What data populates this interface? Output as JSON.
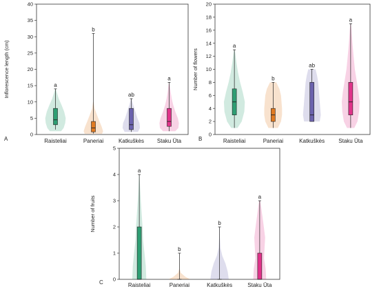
{
  "chart_data": [
    {
      "panel": "A",
      "type": "violin",
      "ylabel": "Inflorescence length (cm)",
      "ylim": [
        0,
        40
      ],
      "yticks": [
        0,
        5,
        10,
        15,
        20,
        25,
        30,
        35,
        40
      ],
      "categories": [
        "Raisteliai",
        "Paneriai",
        "Katkuškės",
        "Staku Ūta"
      ],
      "colors": [
        "#2e9e73",
        "#e07a22",
        "#6b62ad",
        "#e0338a"
      ],
      "groups": [
        {
          "letter": "a",
          "min": 1.5,
          "q1": 3,
          "median": 4.5,
          "q3": 8,
          "max": 14,
          "density": [
            [
              1,
              0.55
            ],
            [
              2,
              0.8
            ],
            [
              3.5,
              0.95
            ],
            [
              5,
              1.0
            ],
            [
              7,
              0.85
            ],
            [
              9,
              0.6
            ],
            [
              11,
              0.32
            ],
            [
              13,
              0.12
            ],
            [
              14,
              0.03
            ]
          ]
        },
        {
          "letter": "b",
          "min": 0.3,
          "q1": 0.8,
          "median": 2,
          "q3": 4,
          "max": 31,
          "density": [
            [
              0.2,
              0.85
            ],
            [
              1,
              0.95
            ],
            [
              2.5,
              0.8
            ],
            [
              4,
              0.6
            ],
            [
              6,
              0.35
            ],
            [
              8,
              0.12
            ],
            [
              10,
              0.03
            ]
          ]
        },
        {
          "letter": "ab",
          "min": 0.8,
          "q1": 1.5,
          "median": 3,
          "q3": 8,
          "max": 11,
          "density": [
            [
              0.8,
              0.65
            ],
            [
              2,
              0.85
            ],
            [
              3.5,
              0.8
            ],
            [
              5,
              0.6
            ],
            [
              7,
              0.4
            ],
            [
              9,
              0.2
            ],
            [
              11,
              0.03
            ]
          ]
        },
        {
          "letter": "a",
          "min": 1,
          "q1": 2.5,
          "median": 4,
          "q3": 8,
          "max": 16,
          "density": [
            [
              1,
              0.6
            ],
            [
              2,
              0.9
            ],
            [
              3.5,
              0.95
            ],
            [
              5,
              0.85
            ],
            [
              7,
              0.6
            ],
            [
              9,
              0.4
            ],
            [
              11,
              0.25
            ],
            [
              13,
              0.15
            ],
            [
              15,
              0.07
            ],
            [
              16,
              0.02
            ]
          ]
        }
      ]
    },
    {
      "panel": "B",
      "type": "violin",
      "ylabel": "Number of flowers",
      "ylim": [
        0,
        20
      ],
      "yticks": [
        0,
        2,
        4,
        6,
        8,
        10,
        12,
        14,
        16,
        18,
        20
      ],
      "categories": [
        "Raisteliai",
        "Paneriai",
        "Katkuškės",
        "Staku Ūta"
      ],
      "colors": [
        "#2e9e73",
        "#e07a22",
        "#6b62ad",
        "#e0338a"
      ],
      "groups": [
        {
          "letter": "a",
          "min": 1,
          "q1": 3,
          "median": 5,
          "q3": 7,
          "max": 13,
          "density": [
            [
              1,
              0.3
            ],
            [
              2,
              0.7
            ],
            [
              3.5,
              0.95
            ],
            [
              5,
              1.0
            ],
            [
              6.5,
              0.8
            ],
            [
              8,
              0.55
            ],
            [
              9.5,
              0.35
            ],
            [
              11,
              0.2
            ],
            [
              12.5,
              0.08
            ],
            [
              13,
              0.02
            ]
          ]
        },
        {
          "letter": "b",
          "min": 1,
          "q1": 2,
          "median": 3,
          "q3": 4,
          "max": 8,
          "density": [
            [
              1,
              0.45
            ],
            [
              2,
              0.75
            ],
            [
              3,
              0.85
            ],
            [
              4,
              0.85
            ],
            [
              5,
              0.8
            ],
            [
              6,
              0.75
            ],
            [
              7,
              0.6
            ],
            [
              8,
              0.3
            ]
          ]
        },
        {
          "letter": "ab",
          "min": 2,
          "q1": 2,
          "median": 3,
          "q3": 8,
          "max": 10,
          "density": [
            [
              2,
              0.75
            ],
            [
              3,
              0.85
            ],
            [
              4,
              0.8
            ],
            [
              5,
              0.75
            ],
            [
              6,
              0.7
            ],
            [
              7,
              0.65
            ],
            [
              8,
              0.6
            ],
            [
              9,
              0.5
            ],
            [
              10,
              0.35
            ]
          ]
        },
        {
          "letter": "a",
          "min": 1,
          "q1": 3,
          "median": 5,
          "q3": 8,
          "max": 17,
          "density": [
            [
              1,
              0.35
            ],
            [
              2,
              0.65
            ],
            [
              3.5,
              0.8
            ],
            [
              5,
              0.85
            ],
            [
              6.5,
              0.75
            ],
            [
              8,
              0.6
            ],
            [
              10,
              0.4
            ],
            [
              12,
              0.28
            ],
            [
              14,
              0.17
            ],
            [
              16,
              0.08
            ],
            [
              17,
              0.03
            ]
          ]
        }
      ]
    },
    {
      "panel": "C",
      "type": "violin",
      "ylabel": "Number of fruits",
      "ylim": [
        0,
        5
      ],
      "yticks": [
        0,
        1,
        2,
        3,
        4,
        5
      ],
      "categories": [
        "Raisteliai",
        "Paneriai",
        "Katkuškės",
        "Staku Ūta"
      ],
      "colors": [
        "#2e9e73",
        "#e07a22",
        "#6b62ad",
        "#e0338a"
      ],
      "groups": [
        {
          "letter": "a",
          "min": 0,
          "q1": 0,
          "median": 0,
          "q3": 2,
          "max": 4,
          "density": [
            [
              0,
              0.65
            ],
            [
              0.5,
              0.6
            ],
            [
              1,
              0.48
            ],
            [
              1.5,
              0.35
            ],
            [
              2,
              0.3
            ],
            [
              2.5,
              0.22
            ],
            [
              3,
              0.14
            ],
            [
              3.5,
              0.07
            ],
            [
              4,
              0.02
            ]
          ]
        },
        {
          "letter": "b",
          "min": 0,
          "q1": 0,
          "median": 0,
          "q3": 0,
          "max": 1,
          "density": [
            [
              0,
              1.0
            ],
            [
              0.1,
              0.55
            ],
            [
              0.25,
              0.12
            ],
            [
              0.4,
              0.02
            ],
            [
              1,
              0.0
            ]
          ]
        },
        {
          "letter": "b",
          "min": 0,
          "q1": 0,
          "median": 0,
          "q3": 0,
          "max": 2,
          "density": [
            [
              0,
              0.85
            ],
            [
              0.3,
              0.75
            ],
            [
              0.6,
              0.55
            ],
            [
              0.9,
              0.25
            ],
            [
              1.2,
              0.08
            ],
            [
              1.6,
              0.03
            ],
            [
              2,
              0.01
            ]
          ]
        },
        {
          "letter": "a",
          "min": 0,
          "q1": 0,
          "median": 0,
          "q3": 1,
          "max": 3,
          "density": [
            [
              0,
              0.6
            ],
            [
              0.4,
              0.55
            ],
            [
              0.8,
              0.4
            ],
            [
              1.2,
              0.45
            ],
            [
              1.6,
              0.5
            ],
            [
              2,
              0.38
            ],
            [
              2.4,
              0.25
            ],
            [
              2.8,
              0.12
            ],
            [
              3,
              0.05
            ]
          ]
        }
      ]
    }
  ]
}
